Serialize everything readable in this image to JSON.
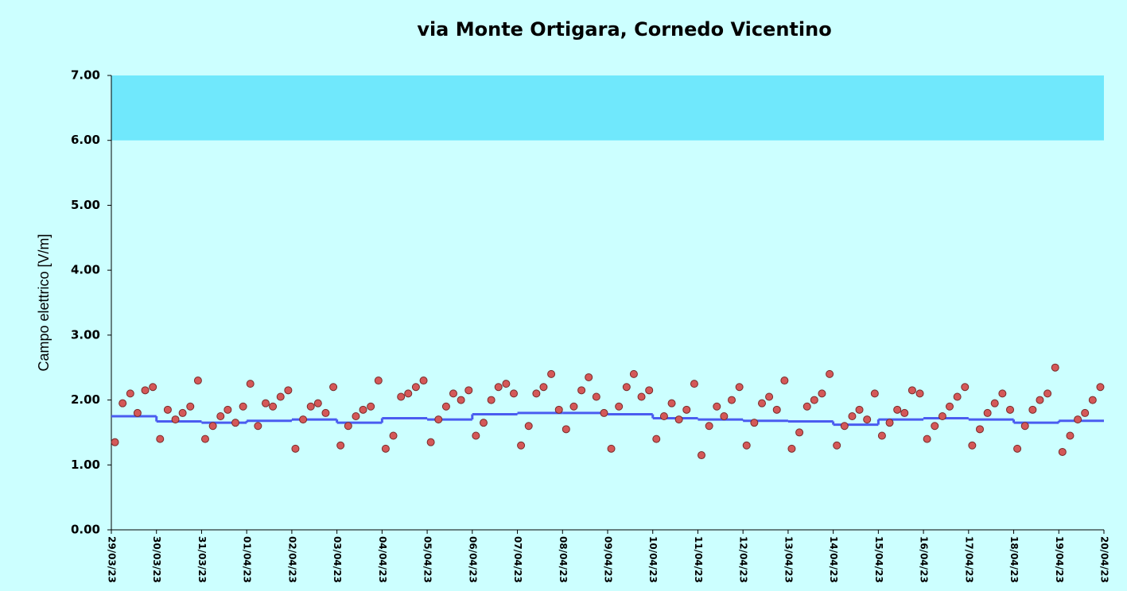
{
  "chart_data": {
    "type": "scatter",
    "title": "via Monte Ortigara, Cornedo  Vicentino",
    "y_label": "Campo elettrico [V/m]",
    "xlim": [
      0,
      22
    ],
    "ylim": [
      0,
      7
    ],
    "yticks": [
      {
        "value": 0,
        "label": "0.00"
      },
      {
        "value": 1,
        "label": "1.00"
      },
      {
        "value": 2,
        "label": "2.00"
      },
      {
        "value": 3,
        "label": "3.00"
      },
      {
        "value": 4,
        "label": "4.00"
      },
      {
        "value": 5,
        "label": "5.00"
      },
      {
        "value": 6,
        "label": "6.00"
      },
      {
        "value": 7,
        "label": "7.00"
      }
    ],
    "xticks": [
      {
        "value": 0,
        "label": "29/03/23"
      },
      {
        "value": 1,
        "label": "30/03/23"
      },
      {
        "value": 2,
        "label": "31/03/23"
      },
      {
        "value": 3,
        "label": "01/04/23"
      },
      {
        "value": 4,
        "label": "02/04/23"
      },
      {
        "value": 5,
        "label": "03/04/23"
      },
      {
        "value": 6,
        "label": "04/04/23"
      },
      {
        "value": 7,
        "label": "05/04/23"
      },
      {
        "value": 8,
        "label": "06/04/23"
      },
      {
        "value": 9,
        "label": "07/04/23"
      },
      {
        "value": 10,
        "label": "08/04/23"
      },
      {
        "value": 11,
        "label": "09/04/23"
      },
      {
        "value": 12,
        "label": "10/04/23"
      },
      {
        "value": 13,
        "label": "11/04/23"
      },
      {
        "value": 14,
        "label": "12/04/23"
      },
      {
        "value": 15,
        "label": "13/04/23"
      },
      {
        "value": 16,
        "label": "14/04/23"
      },
      {
        "value": 17,
        "label": "15/04/23"
      },
      {
        "value": 18,
        "label": "16/04/23"
      },
      {
        "value": 19,
        "label": "17/04/23"
      },
      {
        "value": 20,
        "label": "18/04/23"
      },
      {
        "value": 21,
        "label": "19/04/23"
      },
      {
        "value": 22,
        "label": "20/04/23"
      }
    ],
    "band": [
      6,
      7
    ],
    "band_color": "#70e8fc",
    "point_color": "#d45858",
    "point_edge": "#7a2a2a",
    "line_color": "#4a5cf0",
    "x": [
      0.08,
      0.25,
      0.42,
      0.58,
      0.75,
      0.92,
      1.08,
      1.25,
      1.42,
      1.58,
      1.75,
      1.92,
      2.08,
      2.25,
      2.42,
      2.58,
      2.75,
      2.92,
      3.08,
      3.25,
      3.42,
      3.58,
      3.75,
      3.92,
      4.08,
      4.25,
      4.42,
      4.58,
      4.75,
      4.92,
      5.08,
      5.25,
      5.42,
      5.58,
      5.75,
      5.92,
      6.08,
      6.25,
      6.42,
      6.58,
      6.75,
      6.92,
      7.08,
      7.25,
      7.42,
      7.58,
      7.75,
      7.92,
      8.08,
      8.25,
      8.42,
      8.58,
      8.75,
      8.92,
      9.08,
      9.25,
      9.42,
      9.58,
      9.75,
      9.92,
      10.08,
      10.25,
      10.42,
      10.58,
      10.75,
      10.92,
      11.08,
      11.25,
      11.42,
      11.58,
      11.75,
      11.92,
      12.08,
      12.25,
      12.42,
      12.58,
      12.75,
      12.92,
      13.08,
      13.25,
      13.42,
      13.58,
      13.75,
      13.92,
      14.08,
      14.25,
      14.42,
      14.58,
      14.75,
      14.92,
      15.08,
      15.25,
      15.42,
      15.58,
      15.75,
      15.92,
      16.08,
      16.25,
      16.42,
      16.58,
      16.75,
      16.92,
      17.08,
      17.25,
      17.42,
      17.58,
      17.75,
      17.92,
      18.08,
      18.25,
      18.42,
      18.58,
      18.75,
      18.92,
      19.08,
      19.25,
      19.42,
      19.58,
      19.75,
      19.92,
      20.08,
      20.25,
      20.42,
      20.58,
      20.75,
      20.92,
      21.08,
      21.25,
      21.42,
      21.58,
      21.75,
      21.92
    ],
    "values": [
      1.35,
      1.95,
      2.1,
      1.8,
      2.15,
      2.2,
      1.4,
      1.85,
      1.7,
      1.8,
      1.9,
      2.3,
      1.4,
      1.6,
      1.75,
      1.85,
      1.65,
      1.9,
      2.25,
      1.6,
      1.95,
      1.9,
      2.05,
      2.15,
      1.25,
      1.7,
      1.9,
      1.95,
      1.8,
      2.2,
      1.3,
      1.6,
      1.75,
      1.85,
      1.9,
      2.3,
      1.25,
      1.45,
      2.05,
      2.1,
      2.2,
      2.3,
      1.35,
      1.7,
      1.9,
      2.1,
      2.0,
      2.15,
      1.45,
      1.65,
      2.0,
      2.2,
      2.25,
      2.1,
      1.3,
      1.6,
      2.1,
      2.2,
      2.4,
      1.85,
      1.55,
      1.9,
      2.15,
      2.35,
      2.05,
      1.8,
      1.25,
      1.9,
      2.2,
      2.4,
      2.05,
      2.15,
      1.4,
      1.75,
      1.95,
      1.7,
      1.85,
      2.25,
      1.15,
      1.6,
      1.9,
      1.75,
      2.0,
      2.2,
      1.3,
      1.65,
      1.95,
      2.05,
      1.85,
      2.3,
      1.25,
      1.5,
      1.9,
      2.0,
      2.1,
      2.4,
      1.3,
      1.6,
      1.75,
      1.85,
      1.7,
      2.1,
      1.45,
      1.65,
      1.85,
      1.8,
      2.15,
      2.1,
      1.4,
      1.6,
      1.75,
      1.9,
      2.05,
      2.2,
      1.3,
      1.55,
      1.8,
      1.95,
      2.1,
      1.85,
      1.25,
      1.6,
      1.85,
      2.0,
      2.1,
      2.5,
      1.2,
      1.45,
      1.7,
      1.8,
      2.0,
      2.2
    ],
    "daily_mean": [
      1.75,
      1.67,
      1.65,
      1.68,
      1.7,
      1.65,
      1.72,
      1.7,
      1.78,
      1.8,
      1.8,
      1.78,
      1.72,
      1.7,
      1.68,
      1.67,
      1.62,
      1.7,
      1.72,
      1.7,
      1.65,
      1.68
    ]
  }
}
